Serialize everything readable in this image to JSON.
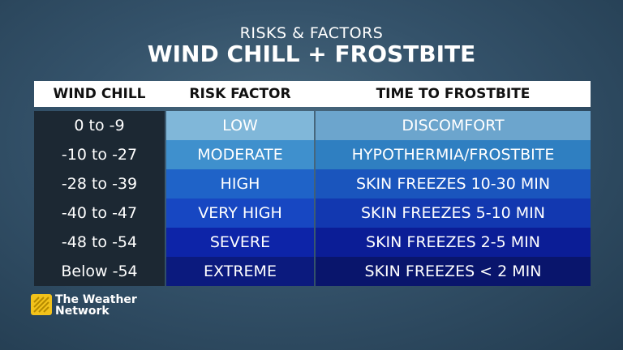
{
  "header": {
    "subtitle": "RISKS & FACTORS",
    "title": "WIND CHILL + FROSTBITE"
  },
  "table": {
    "columns": [
      "WIND CHILL",
      "RISK FACTOR",
      "TIME TO FROSTBITE"
    ],
    "rows": [
      [
        "0 to -9",
        "LOW",
        "DISCOMFORT"
      ],
      [
        "-10 to -27",
        "MODERATE",
        "HYPOTHERMIA/FROSTBITE"
      ],
      [
        "-28 to -39",
        "HIGH",
        "SKIN FREEZES 10-30 MIN"
      ],
      [
        "-40 to -47",
        "VERY HIGH",
        "SKIN FREEZES 5-10 MIN"
      ],
      [
        "-48 to -54",
        "SEVERE",
        "SKIN FREEZES 2-5 MIN"
      ],
      [
        "Below -54",
        "EXTREME",
        "SKIN FREEZES < 2 MIN"
      ]
    ]
  },
  "logo": {
    "line1": "The Weather",
    "line2": "Network"
  }
}
